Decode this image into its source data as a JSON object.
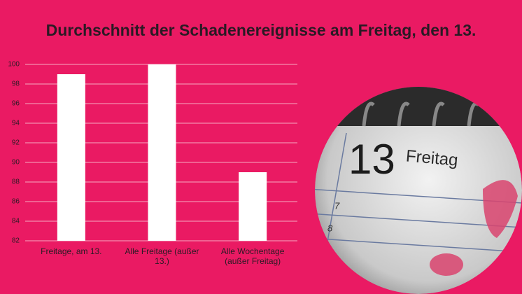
{
  "chart_data": {
    "type": "bar",
    "title": "Durchschnitt der Schadenereignisse am Freitag, den 13.",
    "categories": [
      "Freitage, am 13.",
      "Alle Freitage (außer 13.)",
      "Alle Wochentage (außer Freitag)"
    ],
    "values": [
      99,
      100,
      89
    ],
    "color": "#ffffff",
    "ylim": [
      82,
      100
    ],
    "yticks": [
      82,
      84,
      86,
      88,
      90,
      92,
      94,
      96,
      98,
      100
    ],
    "grid": true
  },
  "photo": {
    "day": "13",
    "weekday": "Freitag",
    "rows": [
      "7",
      "8"
    ]
  }
}
